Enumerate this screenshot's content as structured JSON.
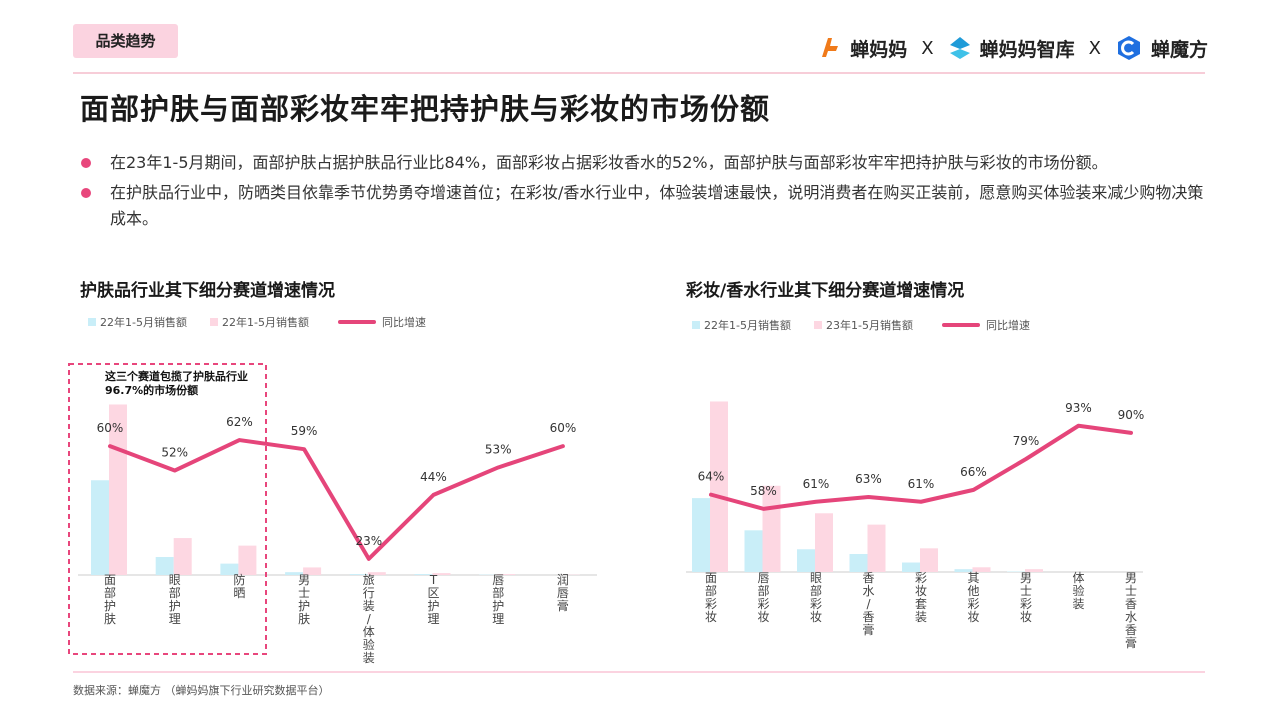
{
  "header": {
    "tag": "品类趋势",
    "logos": [
      {
        "text": "蝉妈妈",
        "icon": "chanmama-logo-icon",
        "color": "#f07a1a"
      },
      {
        "text": "X"
      },
      {
        "text": "蝉妈妈智库",
        "icon": "chanmama-zhiku-logo-icon",
        "color": "#1f9bd8"
      },
      {
        "text": "X"
      },
      {
        "text": "蝉魔方",
        "icon": "chanmofang-logo-icon",
        "color": "#1f6fe0"
      }
    ]
  },
  "title": "面部护肤与面部彩妆牢牢把持护肤与彩妆的市场份额",
  "bullets": [
    "在23年1-5月期间，面部护肤占据护肤品行业比84%，面部彩妆占据彩妆香水的52%，面部护肤与面部彩妆牢牢把持护肤与彩妆的市场份额。",
    "在护肤品行业中，防晒类目依靠季节优势勇夺增速首位；在彩妆/香水行业中，体验装增速最快，说明消费者在购买正装前，愿意购买体验装来减少购物决策成本。"
  ],
  "annotation": "这三个赛道包揽了护肤品行业96.7%的市场份额",
  "footer": "数据来源：蝉魔方  （蝉妈妈旗下行业研究数据平台）",
  "colors": {
    "bar22": "#c9eef8",
    "bar23": "#fdd7e2",
    "line": "#e5457a",
    "accent": "#e8467c"
  },
  "chart_data": [
    {
      "type": "bar",
      "title": "护肤品行业其下细分赛道增速情况",
      "legend": [
        "22年1-5月销售额",
        "22年1-5月销售额",
        "同比增速"
      ],
      "categories": [
        "面部护肤",
        "眼部护理",
        "防晒",
        "男士护肤",
        "旅行装/体验装",
        "T区护理",
        "唇部护理",
        "润唇膏"
      ],
      "series": [
        {
          "name": "22年1-5月销售额",
          "kind": "bar",
          "values": [
            100,
            19,
            12,
            3,
            1,
            1,
            0.4,
            0.1
          ]
        },
        {
          "name": "22年1-5月销售额",
          "kind": "bar",
          "values": [
            180,
            39,
            31,
            8,
            3,
            2,
            1,
            0.3
          ]
        },
        {
          "name": "同比增速",
          "kind": "line",
          "values": [
            60,
            52,
            62,
            59,
            23,
            44,
            53,
            60
          ],
          "labels": [
            "60%",
            "52%",
            "62%",
            "59%",
            "23%",
            "44%",
            "53%",
            "60%"
          ]
        }
      ],
      "bar_ylim": [
        0,
        190
      ],
      "line_ylim": [
        20,
        63
      ]
    },
    {
      "type": "bar",
      "title": "彩妆/香水行业其下细分赛道增速情况",
      "legend": [
        "22年1-5月销售额",
        "23年1-5月销售额",
        "同比增速"
      ],
      "categories": [
        "面部彩妆",
        "唇部彩妆",
        "眼部彩妆",
        "香水/香膏",
        "彩妆套装",
        "其他彩妆",
        "男士彩妆",
        "体验装",
        "男士香水香膏"
      ],
      "series": [
        {
          "name": "22年1-5月销售额",
          "kind": "bar",
          "values": [
            78,
            44,
            24,
            19,
            10,
            3,
            0.5,
            0,
            0
          ]
        },
        {
          "name": "23年1-5月销售额",
          "kind": "bar",
          "values": [
            180,
            91,
            62,
            50,
            25,
            5,
            3,
            0.2,
            0
          ]
        },
        {
          "name": "同比增速",
          "kind": "line",
          "values": [
            64,
            58,
            61,
            63,
            61,
            66,
            79,
            93,
            90
          ],
          "labels": [
            "64%",
            "58%",
            "61%",
            "63%",
            "61%",
            "66%",
            "79%",
            "93%",
            "90%"
          ]
        }
      ],
      "bar_ylim": [
        0,
        190
      ],
      "line_ylim": [
        55,
        95
      ]
    }
  ]
}
